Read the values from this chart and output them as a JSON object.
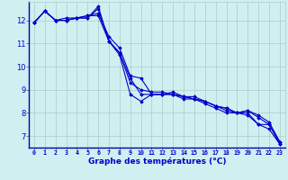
{
  "title": "Graphe des températures (°C)",
  "background_color": "#cff0f0",
  "line_color": "#0000cc",
  "grid_color": "#b0c8c8",
  "xlim": [
    -0.5,
    23.5
  ],
  "ylim": [
    6.5,
    12.8
  ],
  "xticks": [
    0,
    1,
    2,
    3,
    4,
    5,
    6,
    7,
    8,
    9,
    10,
    11,
    12,
    13,
    14,
    15,
    16,
    17,
    18,
    19,
    20,
    21,
    22,
    23
  ],
  "yticks": [
    7,
    8,
    9,
    10,
    11,
    12
  ],
  "series": [
    [
      11.9,
      12.4,
      12.0,
      12.0,
      12.1,
      12.1,
      12.5,
      11.1,
      10.5,
      8.8,
      8.5,
      8.8,
      8.8,
      8.8,
      8.6,
      8.6,
      8.4,
      8.2,
      8.0,
      8.0,
      8.0,
      7.5,
      7.3,
      6.65
    ],
    [
      11.9,
      12.4,
      12.0,
      12.0,
      12.1,
      12.2,
      12.2,
      11.1,
      10.6,
      9.3,
      9.0,
      8.9,
      8.9,
      8.8,
      8.7,
      8.6,
      8.5,
      8.3,
      8.1,
      8.0,
      8.1,
      7.8,
      7.5,
      6.75
    ],
    [
      11.9,
      12.4,
      12.0,
      12.1,
      12.1,
      12.2,
      12.3,
      11.3,
      10.8,
      9.6,
      9.5,
      8.8,
      8.8,
      8.8,
      8.7,
      8.6,
      8.5,
      8.3,
      8.2,
      8.0,
      8.1,
      7.9,
      7.6,
      6.75
    ],
    [
      11.9,
      12.4,
      12.0,
      12.0,
      12.1,
      12.1,
      12.6,
      11.1,
      10.6,
      9.5,
      8.8,
      8.8,
      8.8,
      8.9,
      8.7,
      8.7,
      8.5,
      8.3,
      8.2,
      8.0,
      7.9,
      7.5,
      7.5,
      6.65
    ]
  ]
}
